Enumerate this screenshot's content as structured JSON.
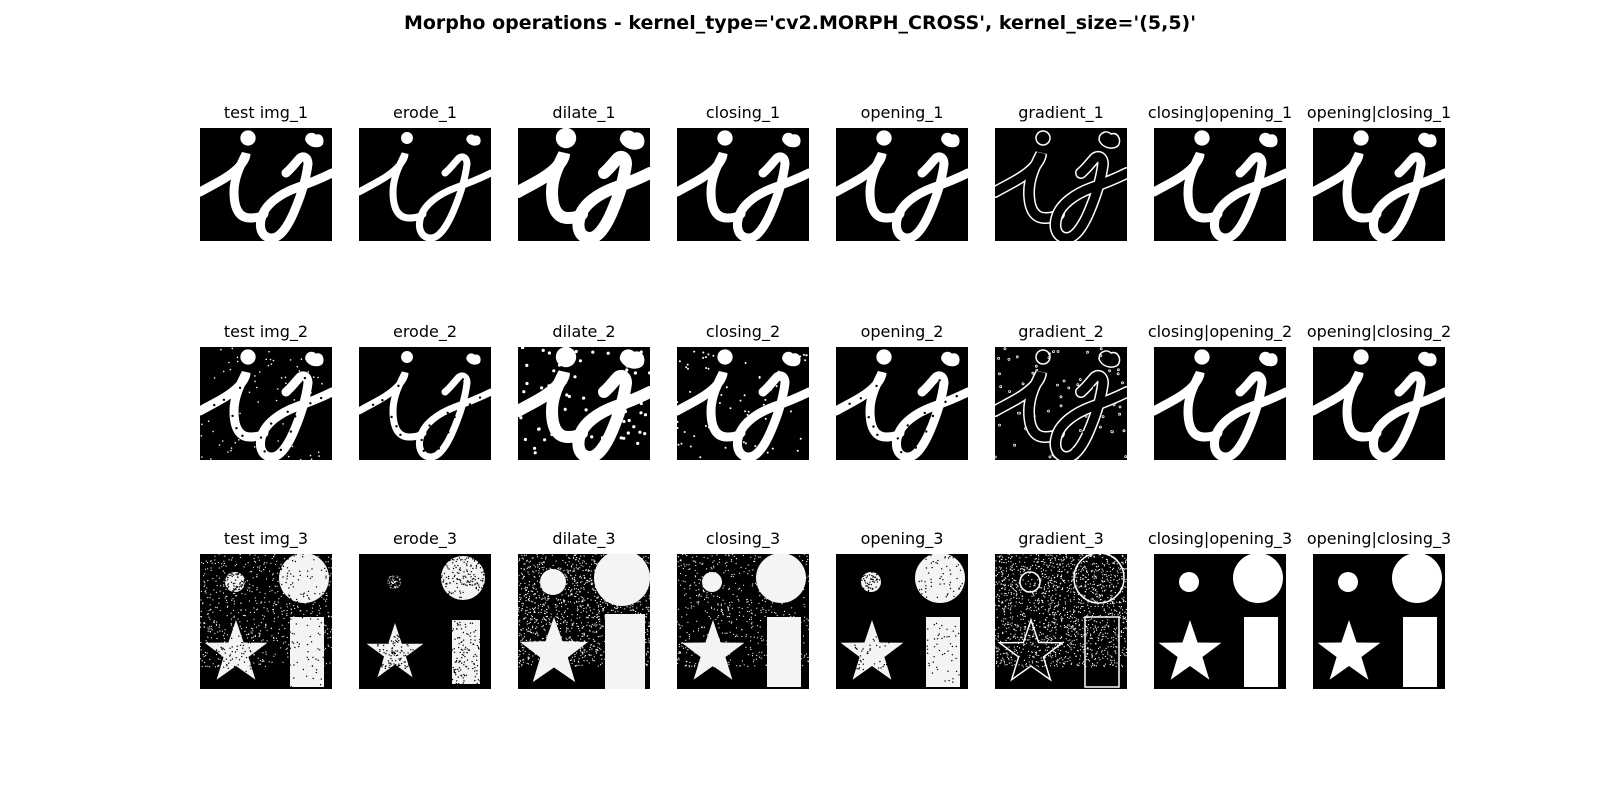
{
  "figure": {
    "title": "Morpho operations - kernel_type='cv2.MORPH_CROSS', kernel_size='(5,5)'"
  },
  "colors": {
    "background": "#ffffff",
    "panel_background": "#000000",
    "foreground": "#ffffff"
  },
  "rows": [
    {
      "image": "ij-letters",
      "panels": [
        {
          "title": "test img_1",
          "variant": "original"
        },
        {
          "title": "erode_1",
          "variant": "erode"
        },
        {
          "title": "dilate_1",
          "variant": "dilate"
        },
        {
          "title": "closing_1",
          "variant": "closing"
        },
        {
          "title": "opening_1",
          "variant": "opening"
        },
        {
          "title": "gradient_1",
          "variant": "gradient"
        },
        {
          "title": "closing|opening_1",
          "variant": "clean"
        },
        {
          "title": "opening|closing_1",
          "variant": "clean"
        }
      ]
    },
    {
      "image": "ij-letters-noisy",
      "panels": [
        {
          "title": "test img_2",
          "variant": "original"
        },
        {
          "title": "erode_2",
          "variant": "erode"
        },
        {
          "title": "dilate_2",
          "variant": "dilate"
        },
        {
          "title": "closing_2",
          "variant": "closing"
        },
        {
          "title": "opening_2",
          "variant": "opening"
        },
        {
          "title": "gradient_2",
          "variant": "gradient"
        },
        {
          "title": "closing|opening_2",
          "variant": "clean"
        },
        {
          "title": "opening|closing_2",
          "variant": "clean"
        }
      ]
    },
    {
      "image": "shapes-noisy",
      "panels": [
        {
          "title": "test img_3",
          "variant": "original"
        },
        {
          "title": "erode_3",
          "variant": "erode"
        },
        {
          "title": "dilate_3",
          "variant": "dilate"
        },
        {
          "title": "closing_3",
          "variant": "closing"
        },
        {
          "title": "opening_3",
          "variant": "opening"
        },
        {
          "title": "gradient_3",
          "variant": "gradient"
        },
        {
          "title": "closing|opening_3",
          "variant": "clean"
        },
        {
          "title": "opening|closing_3",
          "variant": "clean"
        }
      ]
    }
  ]
}
